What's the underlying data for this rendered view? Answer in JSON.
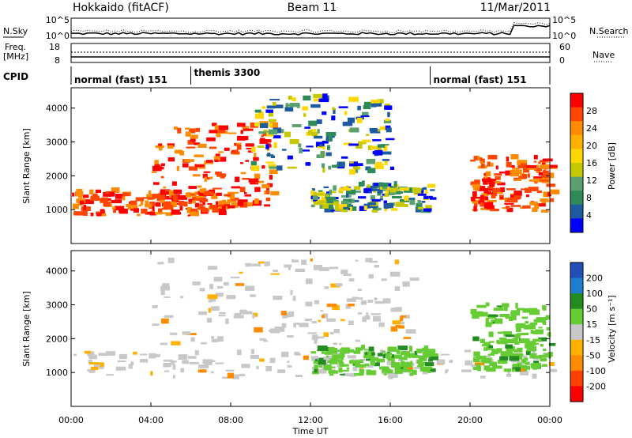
{
  "header": {
    "left_title": "Hokkaido (fitACF)",
    "center_title": "Beam 11",
    "right_title": "11/Mar/2011"
  },
  "noise_panel": {
    "left_label": "N.Sky",
    "right_label": "N.Search",
    "left_ticks": [
      "10^5",
      "10^0"
    ],
    "right_ticks": [
      "10^5",
      "10^0"
    ]
  },
  "freq_panel": {
    "left_label_line1": "Freq.",
    "left_label_line2": "[MHz]",
    "left_ticks": [
      "18",
      "8"
    ],
    "right_label": "Nave",
    "right_ticks": [
      "60",
      "0"
    ]
  },
  "cpid_panel": {
    "label": "CPID",
    "modes": [
      {
        "name": "normal (fast) 151",
        "start_hour": 0,
        "end_hour": 6
      },
      {
        "name": "themis 3300",
        "start_hour": 6,
        "end_hour": 18
      },
      {
        "name": "normal (fast) 151",
        "start_hour": 18,
        "end_hour": 24
      }
    ]
  },
  "power_colorbar": {
    "label": "Power [dB]",
    "ticks": [
      "28",
      "24",
      "20",
      "16",
      "12",
      "8",
      "4"
    ],
    "colors": [
      "#ff0000",
      "#ff4500",
      "#ff8c00",
      "#ffb000",
      "#ffd700",
      "#c8c800",
      "#5aa06e",
      "#2e8b57",
      "#1e5aa0",
      "#0000ff"
    ]
  },
  "velocity_colorbar": {
    "label": "Velocity [m s⁻¹]",
    "ticks": [
      "200",
      "100",
      "50",
      "15",
      "-15",
      "-50",
      "-100",
      "-200"
    ],
    "colors": [
      "#2050b8",
      "#1e7fd0",
      "#228b22",
      "#66cc33",
      "#c8c8c8",
      "#ffb000",
      "#ff8c00",
      "#ff4000",
      "#ff0000"
    ]
  },
  "chart_data": [
    {
      "type": "heatmap",
      "title": "",
      "xlabel": "",
      "ylabel": "Slant Range [km]",
      "xlim": [
        0,
        24
      ],
      "ylim": [
        0,
        4600
      ],
      "yticks": [
        1000,
        2000,
        3000,
        4000
      ],
      "colorbar_label": "Power [dB]",
      "regions": [
        {
          "description": "near-range band",
          "hour_start": 0,
          "hour_end": 8,
          "range_km": [
            800,
            1500
          ],
          "value_db": 26
        },
        {
          "description": "sloped echo streaks",
          "hour_start": 4,
          "hour_end": 10,
          "range_km": [
            1000,
            3500
          ],
          "value_db": 24
        },
        {
          "description": "upper diffuse scatter",
          "hour_start": 9,
          "hour_end": 16,
          "range_km": [
            2000,
            4300
          ],
          "value_db": 12
        },
        {
          "description": "descending trace",
          "hour_start": 12,
          "hour_end": 18,
          "range_km": [
            900,
            1700
          ],
          "value_db": 22
        },
        {
          "description": "evening band",
          "hour_start": 20,
          "hour_end": 24,
          "range_km": [
            900,
            2500
          ],
          "value_db": 26
        }
      ]
    },
    {
      "type": "heatmap",
      "title": "",
      "xlabel": "Time UT",
      "ylabel": "Slant Range [km]",
      "xlim": [
        0,
        24
      ],
      "ylim": [
        0,
        4600
      ],
      "xticks": [
        "00:00",
        "04:00",
        "08:00",
        "12:00",
        "16:00",
        "20:00",
        "00:00"
      ],
      "yticks": [
        1000,
        2000,
        3000,
        4000
      ],
      "colorbar_label": "Velocity [m s⁻¹]",
      "regions": [
        {
          "description": "near-range ground scatter",
          "hour_start": 0,
          "hour_end": 24,
          "range_km": [
            800,
            1600
          ],
          "value_ms": 0
        },
        {
          "description": "upper scatter",
          "hour_start": 4,
          "hour_end": 17,
          "range_km": [
            1800,
            4300
          ],
          "value_ms": 0
        },
        {
          "description": "descending trace",
          "hour_start": 12,
          "hour_end": 18,
          "range_km": [
            900,
            1700
          ],
          "value_ms": 50
        },
        {
          "description": "evening echoes",
          "hour_start": 20,
          "hour_end": 24,
          "range_km": [
            1000,
            3000
          ],
          "value_ms": 30
        }
      ]
    }
  ]
}
